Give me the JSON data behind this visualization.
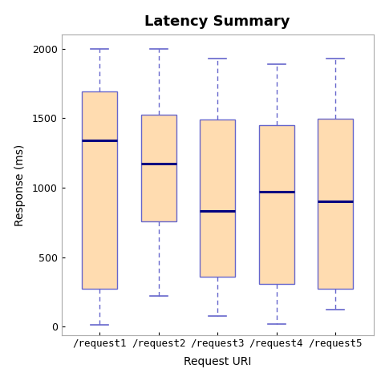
{
  "title": "Latency Summary",
  "xlabel": "Request URI",
  "ylabel": "Response (ms)",
  "categories": [
    "/request1",
    "/request2",
    "/request3",
    "/request4",
    "/request5"
  ],
  "boxes": [
    {
      "whislo": 10,
      "q1": 270,
      "med": 1340,
      "q3": 1690,
      "whishi": 2000
    },
    {
      "whislo": 220,
      "q1": 755,
      "med": 1175,
      "q3": 1525,
      "whishi": 2000
    },
    {
      "whislo": 75,
      "q1": 360,
      "med": 830,
      "q3": 1490,
      "whishi": 1930
    },
    {
      "whislo": 20,
      "q1": 305,
      "med": 970,
      "q3": 1450,
      "whishi": 1890
    },
    {
      "whislo": 120,
      "q1": 270,
      "med": 900,
      "q3": 1495,
      "whishi": 1930
    }
  ],
  "ylim": [
    -60,
    2100
  ],
  "yticks": [
    0,
    500,
    1000,
    1500,
    2000
  ],
  "box_facecolor": "#FFDCB0",
  "box_edgecolor": "#6666CC",
  "median_color": "#000080",
  "whisker_color": "#6666CC",
  "cap_color": "#6666CC",
  "spine_color": "#AAAAAA",
  "background_color": "#FFFFFF",
  "title_fontsize": 13,
  "label_fontsize": 10,
  "tick_fontsize": 9
}
